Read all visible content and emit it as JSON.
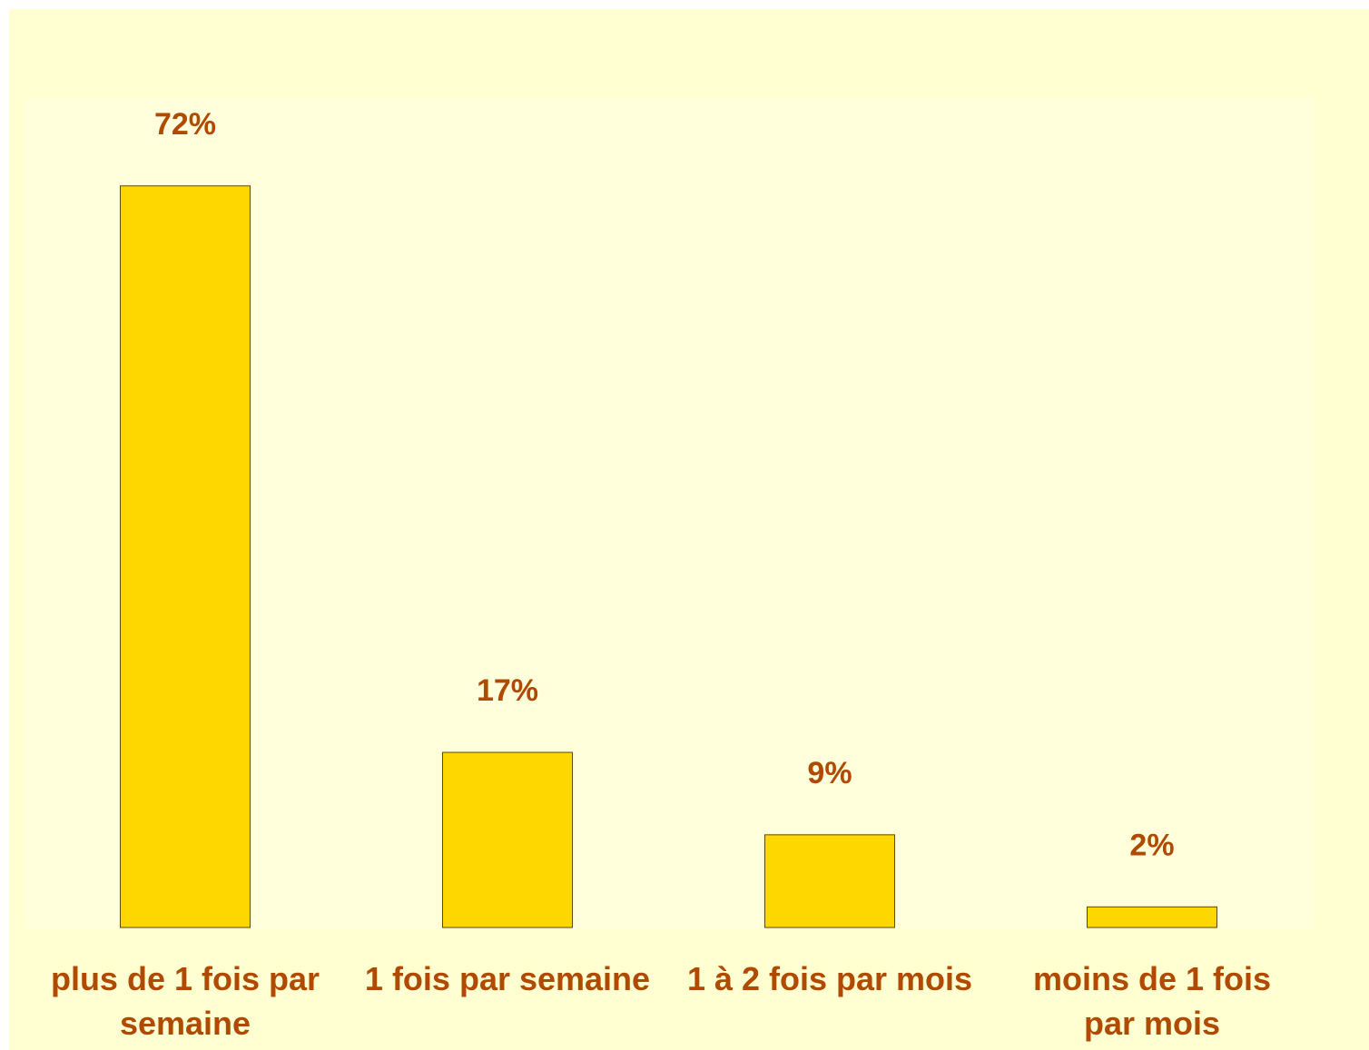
{
  "chart_data": {
    "type": "bar",
    "categories": [
      "plus de 1 fois par semaine",
      "1 fois par semaine",
      "1 à 2 fois par mois",
      "moins de 1 fois par mois"
    ],
    "values": [
      72,
      17,
      9,
      2
    ],
    "value_labels": [
      "72%",
      "17%",
      "9%",
      "2%"
    ],
    "color": "#FFD700"
  }
}
